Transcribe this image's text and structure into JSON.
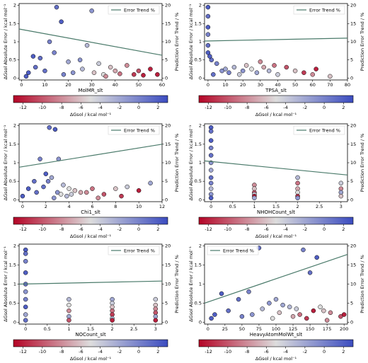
{
  "chart_data": [
    {
      "type": "scatter",
      "xlabel": "MolMR_slt",
      "ylabel": "ΔGsol Absolute Error / kcal mol⁻¹",
      "y2label": "Prediction Error Trend / %",
      "clabel": "ΔGsol / kcal mol⁻¹",
      "xlim": [
        -1,
        60
      ],
      "xticks": [
        0,
        10,
        20,
        30,
        40,
        50,
        60
      ],
      "ylim": [
        -0.05,
        2.05
      ],
      "yticks": [
        0.0,
        0.5,
        1.0,
        1.5,
        2.0
      ],
      "y2lim": [
        -0.5,
        20.5
      ],
      "y2ticks": [
        0,
        5,
        10,
        15,
        20
      ],
      "clim": [
        -13,
        3
      ],
      "cticks": [
        -12,
        -10,
        -8,
        -6,
        -4,
        -2,
        0,
        2
      ],
      "colormap": [
        "#b40426",
        "#dddddd",
        "#3b4cc0"
      ],
      "legend": "upper right",
      "x": [
        15,
        17,
        30,
        12,
        28,
        5,
        8,
        20,
        25,
        33,
        38,
        45,
        50,
        55,
        3,
        10,
        18,
        22,
        35,
        40,
        42,
        48,
        52,
        2,
        6,
        14,
        26,
        31,
        36,
        58
      ],
      "values": [
        1.95,
        1.55,
        1.85,
        1.0,
        0.9,
        0.6,
        0.55,
        0.45,
        0.5,
        0.4,
        0.3,
        0.35,
        0.2,
        0.25,
        0.15,
        0.2,
        0.1,
        0.15,
        0.1,
        0.2,
        0.12,
        0.1,
        0.08,
        0.05,
        0.3,
        0.7,
        0.25,
        0.15,
        0.05,
        0.1
      ],
      "c": [
        1,
        2,
        -1,
        0,
        -3,
        2,
        1,
        -2,
        -1,
        -4,
        -6,
        -8,
        -10,
        -12,
        2,
        1,
        0,
        -1,
        -5,
        -7,
        -9,
        -11,
        -12,
        2,
        1,
        0,
        -3,
        -6,
        -8,
        -12
      ],
      "trend": {
        "name": "Error Trend %",
        "color": "#4a7a6a",
        "axis": "y2",
        "x": [
          -1,
          60
        ],
        "values": [
          13.5,
          6.3
        ]
      }
    },
    {
      "type": "scatter",
      "xlabel": "TPSA_slt",
      "ylabel": "ΔGsol Absolute Error / kcal mol⁻¹",
      "y2label": "Prediction Error Trend / %",
      "clabel": "ΔGsol / kcal mol⁻¹",
      "xlim": [
        -2,
        80
      ],
      "xticks": [
        0,
        10,
        20,
        30,
        40,
        50,
        60,
        70,
        80
      ],
      "ylim": [
        -0.05,
        2.05
      ],
      "yticks": [
        0.0,
        0.5,
        1.0,
        1.5,
        2.0
      ],
      "y2lim": [
        -0.5,
        20.5
      ],
      "y2ticks": [
        0,
        5,
        10,
        15,
        20
      ],
      "clim": [
        -13,
        3
      ],
      "cticks": [
        -12,
        -10,
        -8,
        -6,
        -4,
        -2,
        0,
        2
      ],
      "colormap": [
        "#b40426",
        "#dddddd",
        "#3b4cc0"
      ],
      "legend": "upper right",
      "x": [
        0,
        0,
        0,
        0,
        0,
        0,
        2,
        5,
        8,
        10,
        12,
        15,
        18,
        20,
        22,
        25,
        28,
        30,
        32,
        35,
        38,
        40,
        45,
        50,
        55,
        60,
        62,
        70,
        3,
        1
      ],
      "values": [
        1.95,
        1.7,
        1.4,
        1.2,
        0.9,
        0.7,
        0.5,
        0.4,
        0.2,
        0.25,
        0.15,
        0.3,
        0.1,
        0.2,
        0.35,
        0.25,
        0.15,
        0.45,
        0.3,
        0.2,
        0.35,
        0.1,
        0.3,
        0.2,
        0.15,
        0.1,
        0.25,
        0.05,
        0.1,
        0.6
      ],
      "c": [
        2,
        1,
        2,
        0,
        1,
        2,
        1,
        0,
        -1,
        -2,
        0,
        -3,
        -4,
        -1,
        -6,
        -5,
        -2,
        -8,
        -7,
        -3,
        -9,
        -4,
        -10,
        -6,
        -11,
        -8,
        -12,
        -6,
        1,
        2
      ],
      "trend": {
        "name": "Error Trend %",
        "color": "#4a7a6a",
        "axis": "y2",
        "x": [
          -2,
          80
        ],
        "values": [
          10.2,
          11.0
        ]
      }
    },
    {
      "type": "scatter",
      "xlabel": "Chi1_slt",
      "ylabel": "ΔGsol Absolute Error / kcal mol⁻¹",
      "y2label": "Prediction Error Trend / %",
      "clabel": "ΔGsol / kcal mol⁻¹",
      "xlim": [
        -0.3,
        12
      ],
      "xticks": [
        0,
        2,
        4,
        6,
        8,
        10,
        12
      ],
      "ylim": [
        -0.05,
        2.05
      ],
      "yticks": [
        0.0,
        0.5,
        1.0,
        1.5,
        2.0
      ],
      "y2lim": [
        -0.5,
        20.5
      ],
      "y2ticks": [
        0,
        5,
        10,
        15,
        20
      ],
      "clim": [
        -13,
        3
      ],
      "cticks": [
        -12,
        -10,
        -8,
        -6,
        -4,
        -2,
        0,
        2
      ],
      "colormap": [
        "#b40426",
        "#dddddd",
        "#3b4cc0"
      ],
      "legend": "upper right",
      "x": [
        2.3,
        2.8,
        1.5,
        3.1,
        2.0,
        1.0,
        2.5,
        3.5,
        4.0,
        4.5,
        5,
        5.5,
        6,
        7,
        8,
        8.5,
        9,
        10,
        11,
        0.5,
        1.8,
        2.2,
        3,
        3.8,
        4.2,
        6.5,
        0,
        1.2,
        2.7,
        3.3
      ],
      "values": [
        1.95,
        1.9,
        1.1,
        1.1,
        0.7,
        0.5,
        0.6,
        0.4,
        0.3,
        0.25,
        0.2,
        0.2,
        0.3,
        0.15,
        0.3,
        0.1,
        0.35,
        0.25,
        0.45,
        0.3,
        0.35,
        0.5,
        0.2,
        0.1,
        0.15,
        0.05,
        0.1,
        0.2,
        0.05,
        0.15
      ],
      "c": [
        1,
        2,
        0,
        -1,
        2,
        1,
        -2,
        -3,
        -5,
        -6,
        -7,
        -8,
        -9,
        -10,
        -6,
        -11,
        -4,
        -12,
        -2,
        2,
        1,
        0,
        -1,
        -3,
        -4,
        -8,
        2,
        1,
        -1,
        -5
      ],
      "trend": {
        "name": "Error Trend %",
        "color": "#4a7a6a",
        "axis": "y2",
        "x": [
          -0.3,
          12
        ],
        "values": [
          8.8,
          15.0
        ]
      }
    },
    {
      "type": "scatter",
      "xlabel": "NHOHCount_slt",
      "ylabel": "ΔGsol Absolute Error / kcal mol⁻¹",
      "y2label": "Prediction Error Trend / %",
      "clabel": "ΔGsol / kcal mol⁻¹",
      "xlim": [
        -0.15,
        3.15
      ],
      "xticks": [
        0.0,
        0.5,
        1.0,
        1.5,
        2.0,
        2.5,
        3.0
      ],
      "ylim": [
        -0.05,
        2.05
      ],
      "yticks": [
        0.0,
        0.5,
        1.0,
        1.5,
        2.0
      ],
      "y2lim": [
        -0.5,
        20.5
      ],
      "y2ticks": [
        0,
        5,
        10,
        15,
        20
      ],
      "clim": [
        -13,
        3
      ],
      "cticks": [
        -12,
        -10,
        -8,
        -6,
        -4,
        -2,
        0,
        2
      ],
      "colormap": [
        "#b40426",
        "#dddddd",
        "#3b4cc0"
      ],
      "legend": "upper right",
      "x": [
        0,
        0,
        0,
        0,
        0,
        0,
        0,
        0,
        0,
        0,
        0,
        0,
        1,
        1,
        1,
        1,
        1,
        1,
        2,
        2,
        2,
        2,
        2,
        2,
        3,
        3,
        3,
        3
      ],
      "values": [
        1.95,
        1.85,
        1.6,
        1.4,
        1.2,
        1.0,
        0.8,
        0.6,
        0.45,
        0.3,
        0.15,
        0.05,
        0.4,
        0.3,
        0.2,
        0.15,
        0.1,
        0.05,
        0.6,
        0.45,
        0.3,
        0.2,
        0.1,
        0.05,
        0.45,
        0.3,
        0.2,
        0.1
      ],
      "c": [
        2,
        1,
        2,
        0,
        1,
        -1,
        -2,
        1,
        0,
        -3,
        -1,
        2,
        -8,
        -6,
        -10,
        -4,
        -12,
        -2,
        -3,
        -9,
        -7,
        -5,
        -11,
        -1,
        -4,
        -8,
        -2,
        -6
      ],
      "trend": {
        "name": "Error Trend %",
        "color": "#4a7a6a",
        "axis": "y2",
        "x": [
          -0.15,
          3.15
        ],
        "values": [
          10.5,
          6.7
        ]
      }
    },
    {
      "type": "scatter",
      "xlabel": "NOCount_slt",
      "ylabel": "ΔGsol Absolute Error / kcal mol⁻¹",
      "y2label": "Prediction Error Trend / %",
      "clabel": "ΔGsol / kcal mol⁻¹",
      "xlim": [
        -0.15,
        3.15
      ],
      "xticks": [
        0.0,
        0.5,
        1.0,
        1.5,
        2.0,
        2.5,
        3.0
      ],
      "ylim": [
        -0.05,
        2.05
      ],
      "yticks": [
        0.0,
        0.5,
        1.0,
        1.5,
        2.0
      ],
      "y2lim": [
        -0.5,
        20.5
      ],
      "y2ticks": [
        0,
        5,
        10,
        15,
        20
      ],
      "clim": [
        -13,
        3
      ],
      "cticks": [
        -12,
        -10,
        -8,
        -6,
        -4,
        -2,
        0,
        2
      ],
      "colormap": [
        "#b40426",
        "#dddddd",
        "#3b4cc0"
      ],
      "legend": "upper right",
      "x": [
        0,
        0,
        0,
        0,
        0,
        0,
        0,
        0,
        0,
        0,
        1,
        1,
        1,
        1,
        1,
        2,
        2,
        2,
        2,
        2,
        2,
        2,
        3,
        3,
        3,
        3,
        3,
        3
      ],
      "values": [
        1.9,
        1.8,
        1.6,
        1.3,
        1.0,
        0.8,
        0.6,
        0.4,
        0.2,
        0.05,
        0.6,
        0.45,
        0.3,
        0.15,
        0.05,
        0.6,
        0.5,
        0.4,
        0.3,
        0.2,
        0.1,
        0.05,
        0.6,
        0.45,
        0.35,
        0.25,
        0.15,
        0.05
      ],
      "c": [
        2,
        1,
        0,
        2,
        1,
        -1,
        0,
        2,
        -2,
        1,
        -3,
        -5,
        -8,
        -2,
        -10,
        -2,
        -4,
        -6,
        -9,
        -11,
        -3,
        -12,
        -4,
        -6,
        -8,
        -10,
        -2,
        -12
      ],
      "trend": {
        "name": "Error Trend %",
        "color": "#4a7a6a",
        "axis": "y2",
        "x": [
          -0.15,
          3.15
        ],
        "values": [
          10.0,
          10.8
        ]
      }
    },
    {
      "type": "scatter",
      "xlabel": "HeavyAtomMolWt_slt",
      "ylabel": "ΔGsol Absolute Error / kcal mol⁻¹",
      "y2label": "Prediction Error Trend / %",
      "clabel": "ΔGsol / kcal mol⁻¹",
      "xlim": [
        -5,
        205
      ],
      "xticks": [
        0,
        25,
        50,
        75,
        100,
        125,
        150,
        175,
        200
      ],
      "ylim": [
        -0.05,
        2.05
      ],
      "yticks": [
        0.0,
        0.5,
        1.0,
        1.5,
        2.0
      ],
      "y2lim": [
        -0.5,
        20.5
      ],
      "y2ticks": [
        0,
        5,
        10,
        15,
        20
      ],
      "clim": [
        -13,
        3
      ],
      "cticks": [
        -12,
        -10,
        -8,
        -6,
        -4,
        -2,
        0,
        2
      ],
      "colormap": [
        "#b40426",
        "#dddddd",
        "#3b4cc0"
      ],
      "legend": "upper left",
      "x": [
        75,
        140,
        160,
        150,
        20,
        45,
        60,
        90,
        100,
        120,
        130,
        110,
        170,
        180,
        195,
        10,
        30,
        50,
        65,
        80,
        95,
        105,
        125,
        135,
        145,
        155,
        165,
        175,
        5,
        200
      ],
      "values": [
        1.95,
        1.9,
        1.7,
        1.3,
        0.75,
        0.6,
        0.8,
        0.5,
        0.6,
        0.4,
        0.35,
        0.45,
        0.3,
        0.25,
        0.15,
        0.2,
        0.3,
        0.15,
        0.2,
        0.35,
        0.1,
        0.25,
        0.15,
        0.2,
        0.1,
        0.3,
        0.4,
        0.05,
        0.1,
        0.2
      ],
      "c": [
        1,
        0,
        2,
        1,
        2,
        1,
        0,
        -1,
        -2,
        -3,
        -4,
        -2,
        -6,
        -8,
        -10,
        2,
        1,
        0,
        -1,
        -3,
        -5,
        -6,
        -7,
        -9,
        -11,
        -12,
        -5,
        -8,
        2,
        -12
      ],
      "trend": {
        "name": "Error Trend %",
        "color": "#4a7a6a",
        "axis": "y2",
        "x": [
          -5,
          205
        ],
        "values": [
          5.0,
          17.8
        ]
      }
    }
  ]
}
